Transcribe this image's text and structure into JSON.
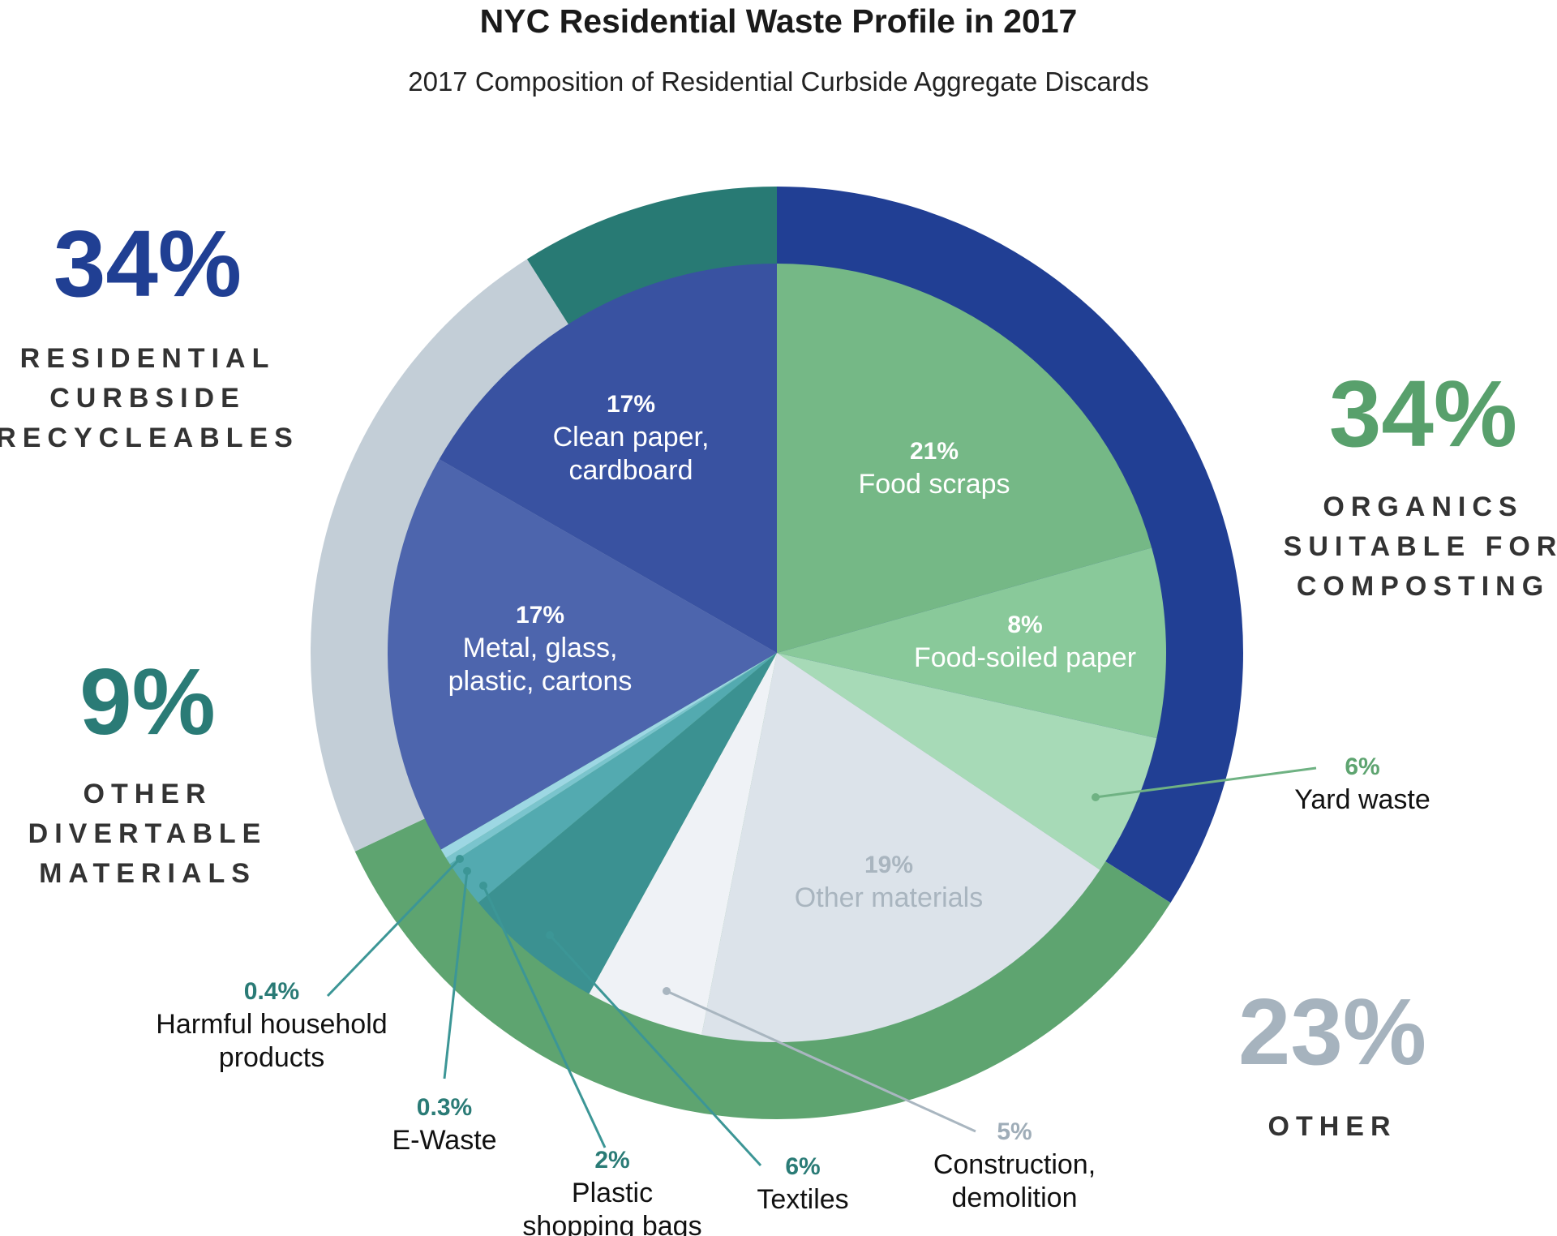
{
  "chart_data": {
    "type": "pie",
    "title": "NYC Residential Waste Profile in 2017",
    "subtitle": "2017 Composition of Residential Curbside Aggregate Discards",
    "unit": "%",
    "groups": [
      {
        "name": "Residential Curbside Recycleables",
        "value_label": "34%",
        "value": 34,
        "lines": [
          "RESIDENTIAL",
          "CURBSIDE",
          "RECYCLEABLES"
        ],
        "color": "#213f94",
        "big_color": "#203f93"
      },
      {
        "name": "Organics Suitable for Composting",
        "value_label": "34%",
        "value": 34,
        "lines": [
          "ORGANICS",
          "SUITABLE FOR",
          "COMPOSTING"
        ],
        "color": "#5ea470",
        "big_color": "#58a06c"
      },
      {
        "name": "Other",
        "value_label": "23%",
        "value": 23,
        "lines": [
          "OTHER"
        ],
        "color": "#c3ced7",
        "big_color": "#a6b3be"
      },
      {
        "name": "Other Divertable Materials",
        "value_label": "9%",
        "value": 9,
        "lines": [
          "OTHER",
          "DIVERTABLE",
          "MATERIALS"
        ],
        "color": "#287a74",
        "big_color": "#2a7b76"
      }
    ],
    "slices": [
      {
        "pct_label": "21%",
        "name_lines": [
          "Food scraps"
        ],
        "value": 21,
        "color": "#75b886",
        "label_color": "#ffffff"
      },
      {
        "pct_label": "8%",
        "name_lines": [
          "Food-soiled paper"
        ],
        "value": 8,
        "color": "#89c99a",
        "label_color": "#ffffff"
      },
      {
        "pct_label": "6%",
        "name_lines": [
          "Yard waste"
        ],
        "value": 6,
        "color": "#a7dab7",
        "label_color": "#5ea470",
        "callout": true
      },
      {
        "pct_label": "19%",
        "name_lines": [
          "Other materials"
        ],
        "value": 19,
        "color": "#dce3ea",
        "label_color": "#a9b5bf"
      },
      {
        "pct_label": "5%",
        "name_lines": [
          "Construction,",
          "demolition"
        ],
        "value": 5,
        "color": "#eff2f6",
        "label_color": "#9fadb8",
        "callout": true
      },
      {
        "pct_label": "6%",
        "name_lines": [
          "Textiles"
        ],
        "value": 6,
        "color": "#3b9191",
        "label_color": "#2a7b76",
        "callout": true
      },
      {
        "pct_label": "2%",
        "name_lines": [
          "Plastic",
          "shopping bags"
        ],
        "value": 2,
        "color": "#53aab0",
        "label_color": "#2a7b76",
        "callout": true
      },
      {
        "pct_label": "0.3%",
        "name_lines": [
          "E-Waste"
        ],
        "value": 0.3,
        "color": "#7ac4cd",
        "label_color": "#2a7b76",
        "callout": true
      },
      {
        "pct_label": "0.4%",
        "name_lines": [
          "Harmful household",
          "products"
        ],
        "value": 0.4,
        "color": "#9dd7e3",
        "label_color": "#2a7b76",
        "callout": true
      },
      {
        "pct_label": "17%",
        "name_lines": [
          "Metal, glass,",
          "plastic, cartons"
        ],
        "value": 17,
        "color": "#4d65ad",
        "label_color": "#ffffff"
      },
      {
        "pct_label": "17%",
        "name_lines": [
          "Clean paper,",
          "cardboard"
        ],
        "value": 17,
        "color": "#3952a1",
        "label_color": "#ffffff"
      }
    ]
  }
}
